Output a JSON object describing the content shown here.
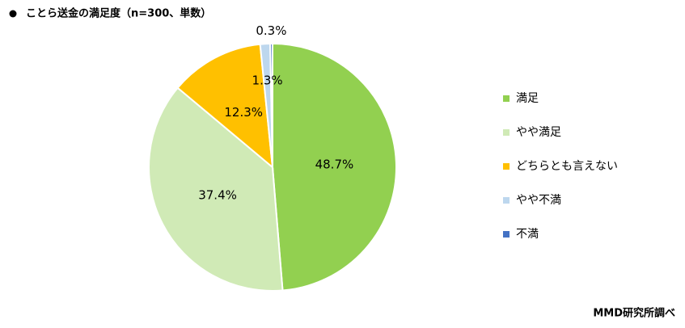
{
  "chart_data": {
    "type": "pie",
    "title": "ことら送金の満足度（n=300、単数）",
    "source": "MMD研究所調べ",
    "categories": [
      "満足",
      "やや満足",
      "どちらとも言えない",
      "やや不満",
      "不満"
    ],
    "values": [
      48.7,
      37.4,
      12.3,
      1.3,
      0.3
    ],
    "value_labels": [
      "48.7%",
      "37.4%",
      "12.3%",
      "1.3%",
      "0.3%"
    ],
    "colors": [
      "#92d050",
      "#d0eab6",
      "#ffc000",
      "#bdd7ee",
      "#4472c4"
    ],
    "legend": "right"
  }
}
